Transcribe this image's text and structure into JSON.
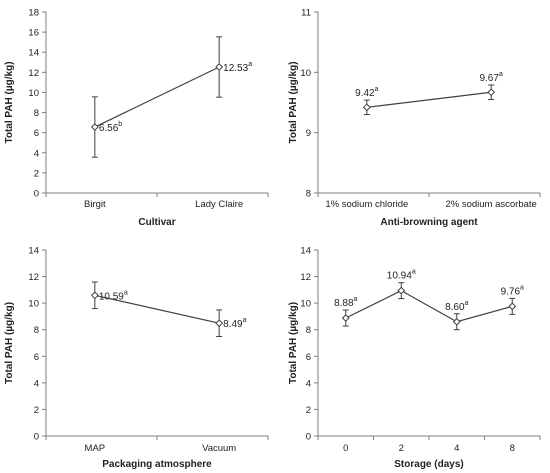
{
  "chart_data": [
    {
      "type": "line",
      "xlabel": "Cultivar",
      "ylabel": "Total PAH (µg/kg)",
      "categories": [
        "Birgit",
        "Lady Claire"
      ],
      "values": [
        6.56,
        12.53
      ],
      "errors": [
        3.0,
        3.0
      ],
      "data_labels": [
        "6.56",
        "12.53"
      ],
      "letters": [
        "b",
        "a"
      ],
      "ylim": [
        0,
        18
      ],
      "yticks": [
        0,
        2,
        4,
        6,
        8,
        10,
        12,
        14,
        16,
        18
      ],
      "ytick_labels": [
        "0",
        "2",
        "4",
        "6",
        "8",
        "10",
        "12",
        "14",
        "16",
        "18"
      ],
      "label_pos": [
        "right",
        "right"
      ],
      "grid": false
    },
    {
      "type": "line",
      "xlabel": "Anti-browning agent",
      "ylabel": "Total PAH (µg/kg)",
      "categories": [
        "1% sodium chloride",
        "2% sodium ascorbate"
      ],
      "values": [
        9.42,
        9.67
      ],
      "errors": [
        0.12,
        0.12
      ],
      "data_labels": [
        "9.42",
        "9.67"
      ],
      "letters": [
        "a",
        "a"
      ],
      "ylim": [
        8,
        11
      ],
      "yticks": [
        8,
        9,
        10,
        11
      ],
      "ytick_labels": [
        "8",
        "9",
        "10",
        "11"
      ],
      "label_pos": [
        "above",
        "above"
      ],
      "grid": false
    },
    {
      "type": "line",
      "xlabel": "Packaging atmosphere",
      "ylabel": "Total PAH (µg/kg)",
      "categories": [
        "MAP",
        "Vacuum"
      ],
      "values": [
        10.59,
        8.49
      ],
      "errors": [
        1.0,
        1.0
      ],
      "data_labels": [
        "10.59",
        "8.49"
      ],
      "letters": [
        "a",
        "a"
      ],
      "ylim": [
        0,
        14
      ],
      "yticks": [
        0,
        2,
        4,
        6,
        8,
        10,
        12,
        14
      ],
      "ytick_labels": [
        "0",
        "2",
        "4",
        "6",
        "8",
        "10",
        "12",
        "14"
      ],
      "label_pos": [
        "right",
        "right"
      ],
      "grid": false
    },
    {
      "type": "line",
      "xlabel": "Storage (days)",
      "ylabel": "Total PAH (µg/kg)",
      "categories": [
        "0",
        "2",
        "4",
        "8"
      ],
      "values": [
        8.88,
        10.94,
        8.6,
        9.76
      ],
      "errors": [
        0.6,
        0.6,
        0.6,
        0.6
      ],
      "data_labels": [
        "8.88",
        "10.94",
        "8.60",
        "9.76"
      ],
      "letters": [
        "a",
        "a",
        "a",
        "a"
      ],
      "ylim": [
        0,
        14
      ],
      "yticks": [
        0,
        2,
        4,
        6,
        8,
        10,
        12,
        14
      ],
      "ytick_labels": [
        "0",
        "2",
        "4",
        "6",
        "8",
        "10",
        "12",
        "14"
      ],
      "label_pos": [
        "above",
        "above",
        "above",
        "above"
      ],
      "grid": false
    }
  ],
  "colors": {
    "axis": "#7f7f7f",
    "line": "#3f3f3f",
    "marker_fill": "#ffffff",
    "text": "#222222"
  }
}
